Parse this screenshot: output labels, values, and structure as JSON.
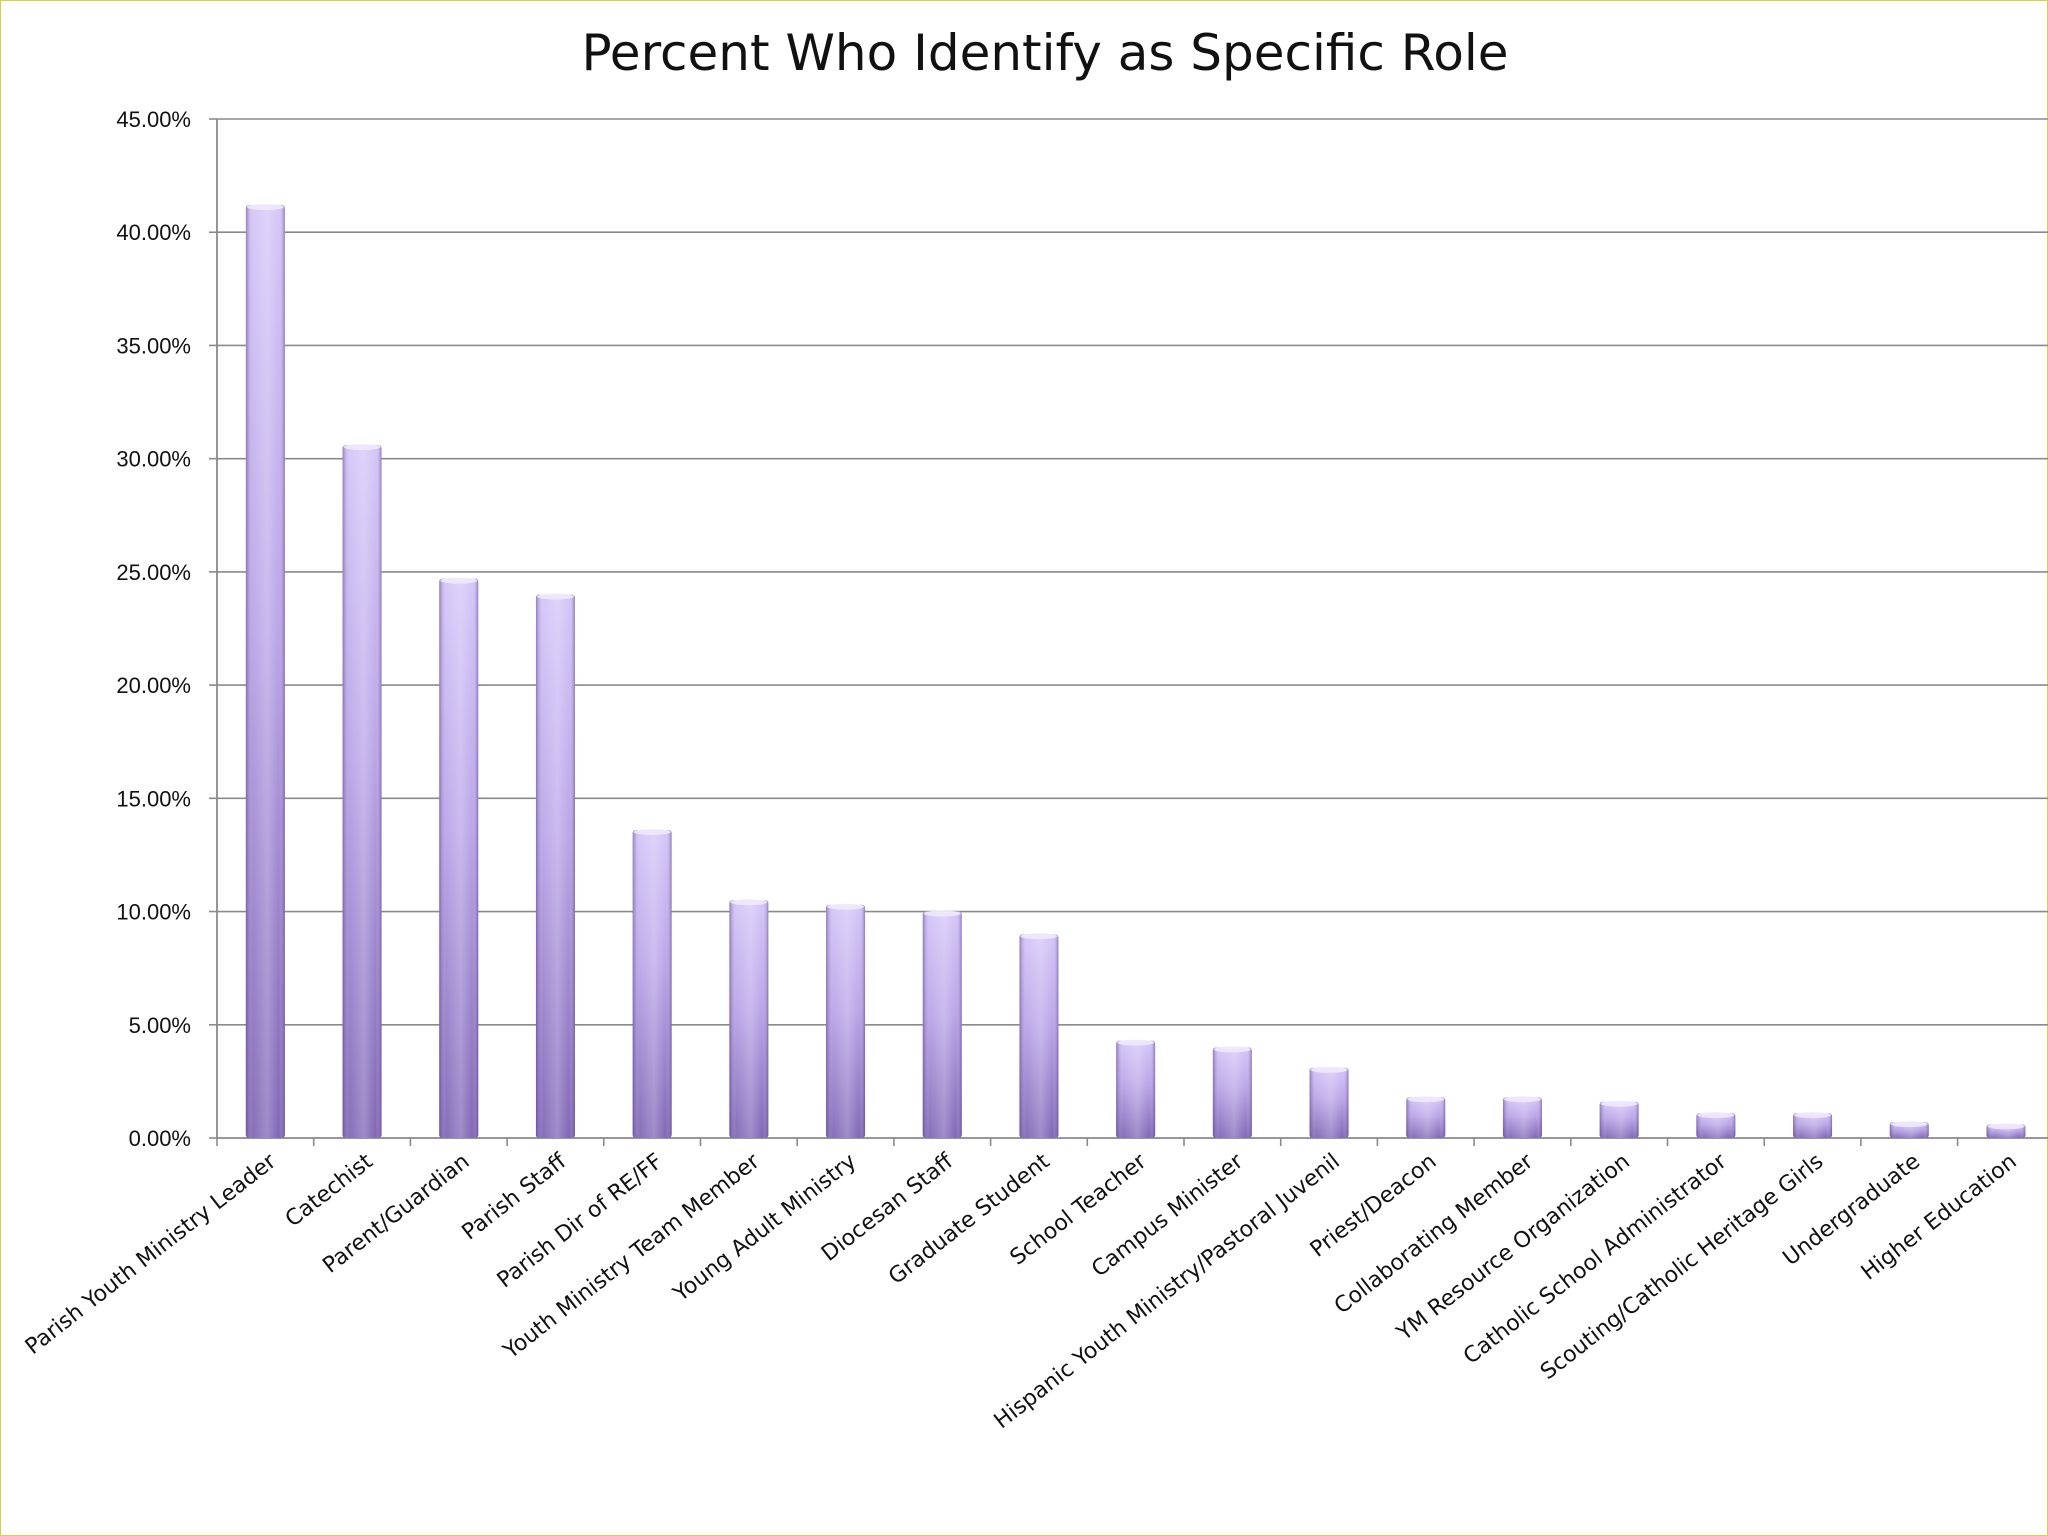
{
  "chart_data": {
    "type": "bar",
    "title": "Percent Who Identify as Specific Role",
    "xlabel": "",
    "ylabel": "",
    "ylim": [
      0,
      45
    ],
    "yticks": [
      "0.00%",
      "5.00%",
      "10.00%",
      "15.00%",
      "20.00%",
      "25.00%",
      "30.00%",
      "35.00%",
      "40.00%",
      "45.00%"
    ],
    "grid": true,
    "legend": "none",
    "bar_color": "#9a82cc",
    "categories": [
      "Parish Youth Ministry Leader",
      "Catechist",
      "Parent/Guardian",
      "Parish Staff",
      "Parish Dir of RE/FF",
      "Youth Ministry Team Member",
      "Young Adult Ministry",
      "Diocesan Staff",
      "Graduate Student",
      "School Teacher",
      "Campus Minister",
      "Hispanic Youth Ministry/Pastoral Juvenil",
      "Priest/Deacon",
      "Collaborating Member",
      "YM Resource Organization",
      "Catholic School Administrator",
      "Scouting/Catholic Heritage Girls",
      "Undergraduate",
      "Higher Education"
    ],
    "values": [
      41.2,
      30.6,
      24.7,
      24.0,
      13.6,
      10.5,
      10.3,
      10.0,
      9.0,
      4.3,
      4.0,
      3.1,
      1.8,
      1.8,
      1.6,
      1.1,
      1.1,
      0.7,
      0.6
    ]
  }
}
